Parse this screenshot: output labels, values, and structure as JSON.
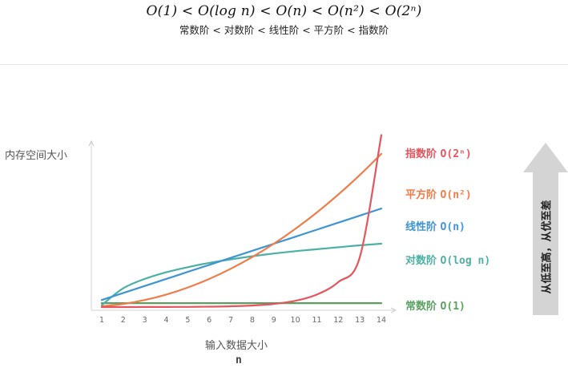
{
  "header": {
    "formula": "O(1) < O(log n) < O(n) < O(n²) < O(2ⁿ)",
    "formula_cn": "常数阶 < 对数阶 < 线性阶 < 平方阶 < 指数阶"
  },
  "arrow": {
    "label": "从低至高，从优至差",
    "color": "#d4d4d4"
  },
  "chart_data": {
    "type": "line",
    "title": "",
    "xlabel": "输入数据大小",
    "xlabel_sub": "n",
    "ylabel": "内存空间大小",
    "x": [
      1,
      2,
      3,
      4,
      5,
      6,
      7,
      8,
      9,
      10,
      11,
      12,
      13,
      14
    ],
    "xlim": [
      1,
      14
    ],
    "grid": false,
    "legend_placement": "right",
    "series": [
      {
        "name": "常数阶 O(1)",
        "name_cn": "常数阶",
        "name_o": "O(1)",
        "color": "#5ba060",
        "values": [
          1,
          1,
          1,
          1,
          1,
          1,
          1,
          1,
          1,
          1,
          1,
          1,
          1,
          1
        ]
      },
      {
        "name": "对数阶 O(log n)",
        "name_cn": "对数阶",
        "name_o": "O(log n)",
        "color": "#4cb0a4",
        "values": [
          0.5,
          4.8,
          7.2,
          8.9,
          10.2,
          11.3,
          12.2,
          13.0,
          13.7,
          14.3,
          14.8,
          15.3,
          15.8,
          16.2
        ]
      },
      {
        "name": "线性阶 O(n)",
        "name_cn": "线性阶",
        "name_o": "O(n)",
        "color": "#3f94d4",
        "values": [
          1.8,
          3.6,
          5.4,
          7.2,
          9.0,
          10.8,
          12.6,
          14.4,
          16.2,
          18.0,
          19.8,
          21.6,
          23.4,
          25.2
        ]
      },
      {
        "name": "平方阶 O(n²)",
        "name_cn": "平方阶",
        "name_o": "O(n²)",
        "color": "#f07c4a",
        "values": [
          0.2,
          0.8,
          1.8,
          3.2,
          5.0,
          7.2,
          9.8,
          12.8,
          16.2,
          20.0,
          24.2,
          28.8,
          33.8,
          39.2
        ]
      },
      {
        "name": "指数阶 O(2ⁿ)",
        "name_cn": "指数阶",
        "name_o": "O(2ⁿ)",
        "color": "#e4555d",
        "values": [
          0.003,
          0.006,
          0.012,
          0.025,
          0.05,
          0.1,
          0.2,
          0.4,
          0.8,
          1.6,
          3.2,
          6.4,
          12.8,
          50
        ]
      }
    ]
  }
}
